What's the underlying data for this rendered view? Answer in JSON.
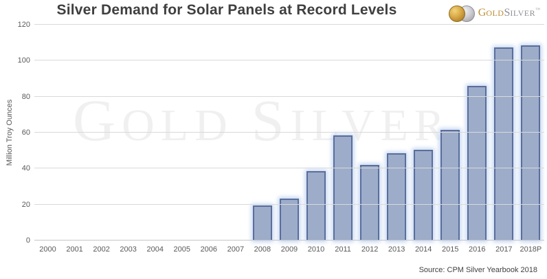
{
  "logo": {
    "gold_initial": "G",
    "gold_rest": "OLD",
    "silver_initial": "S",
    "silver_rest": "ILVER",
    "trademark": "™"
  },
  "watermark": {
    "gold_initial": "G",
    "gold_rest": "OLD",
    "silver_initial": "S",
    "silver_rest": "ILVER"
  },
  "source_note": "Source: CPM Silver Yearbook 2018",
  "chart_data": {
    "type": "bar",
    "title": "Silver Demand for Solar Panels at Record Levels",
    "categories": [
      "2000",
      "2001",
      "2002",
      "2003",
      "2004",
      "2005",
      "2006",
      "2007",
      "2008",
      "2009",
      "2010",
      "2011",
      "2012",
      "2013",
      "2014",
      "2015",
      "2016",
      "2017",
      "2018P"
    ],
    "values": [
      0,
      0,
      0,
      0,
      0,
      0,
      0,
      0,
      19.5,
      23.5,
      38.5,
      58.5,
      42,
      48.5,
      50.5,
      61.5,
      86,
      107.5,
      108.5
    ],
    "xlabel": "",
    "ylabel": "Million Troy Ounces",
    "ylim": [
      0,
      120
    ],
    "yticks": [
      0,
      20,
      40,
      60,
      80,
      100,
      120
    ],
    "grid": "horizontal",
    "legend": false,
    "colors": {
      "bar_fill": "#9DACC9",
      "bar_border": "#5A6E9C",
      "bar_glow": "#BCD0EE",
      "gridline": "#D9D9D9",
      "title_text": "#3F3F3F",
      "axis_text": "#595959",
      "logo_gold": "#BD8D32",
      "logo_silver": "#8F8F94",
      "watermark_text": "#F0F0F0"
    }
  }
}
